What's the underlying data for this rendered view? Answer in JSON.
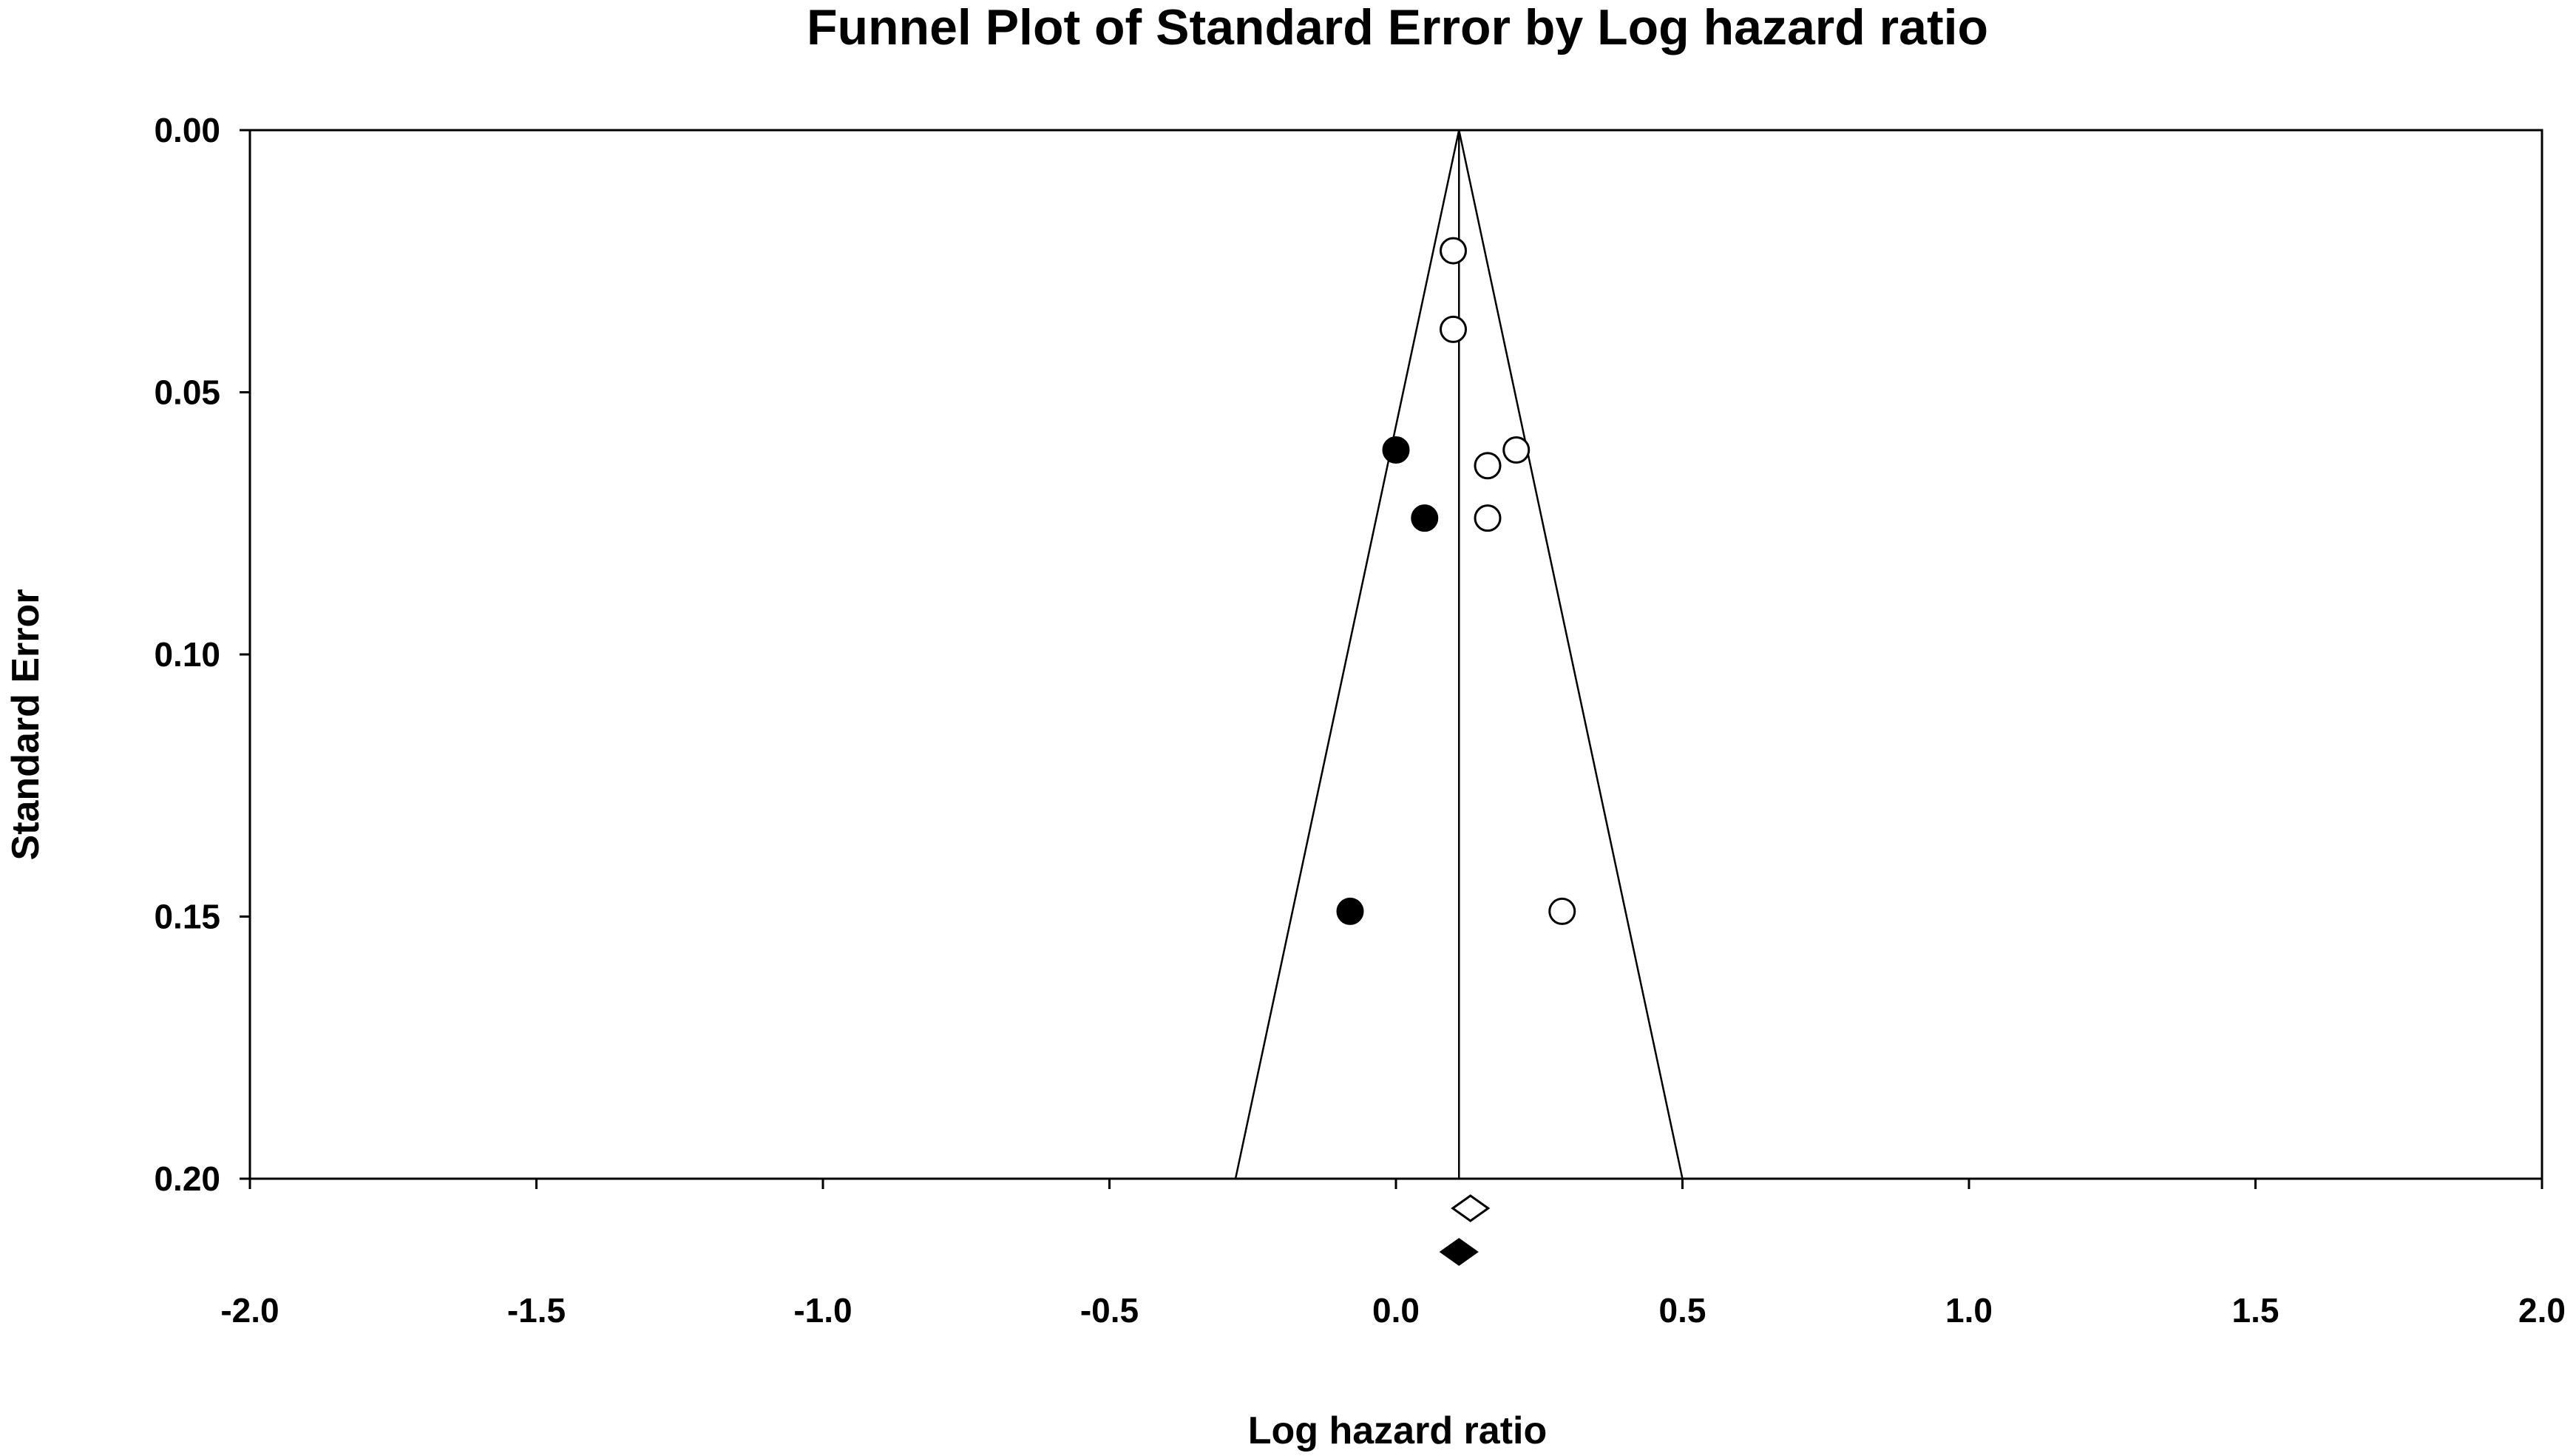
{
  "chart_data": {
    "type": "scatter",
    "title": "Funnel Plot of Standard Error by Log hazard ratio",
    "xlabel": "Log hazard ratio",
    "ylabel": "Standard Error",
    "xlim": [
      -2.0,
      2.0
    ],
    "ylim": [
      0.0,
      0.2
    ],
    "y_inverted": true,
    "x_ticks": [
      "-2.0",
      "-1.5",
      "-1.0",
      "-0.5",
      "0.0",
      "0.5",
      "1.0",
      "1.5",
      "2.0"
    ],
    "y_ticks": [
      "0.00",
      "0.05",
      "0.10",
      "0.15",
      "0.20"
    ],
    "grid": false,
    "funnel": {
      "center": 0.11,
      "apex_se": 0.0,
      "base_se": 0.2,
      "base_left": -0.28,
      "base_right": 0.5
    },
    "series": [
      {
        "marker": "open-circle",
        "points": [
          {
            "x": 0.1,
            "y": 0.023
          },
          {
            "x": 0.1,
            "y": 0.038
          },
          {
            "x": 0.21,
            "y": 0.061
          },
          {
            "x": 0.16,
            "y": 0.064
          },
          {
            "x": 0.16,
            "y": 0.074
          },
          {
            "x": 0.29,
            "y": 0.149
          }
        ]
      },
      {
        "marker": "filled-circle",
        "points": [
          {
            "x": 0.0,
            "y": 0.061
          },
          {
            "x": 0.05,
            "y": 0.074
          },
          {
            "x": -0.08,
            "y": 0.149
          }
        ]
      }
    ],
    "summary_diamonds": [
      {
        "marker": "open-diamond",
        "x": 0.13
      },
      {
        "marker": "filled-diamond",
        "x": 0.11
      }
    ],
    "colors": {
      "line": "#000000",
      "open_fill": "#ffffff",
      "filled": "#000000"
    }
  }
}
